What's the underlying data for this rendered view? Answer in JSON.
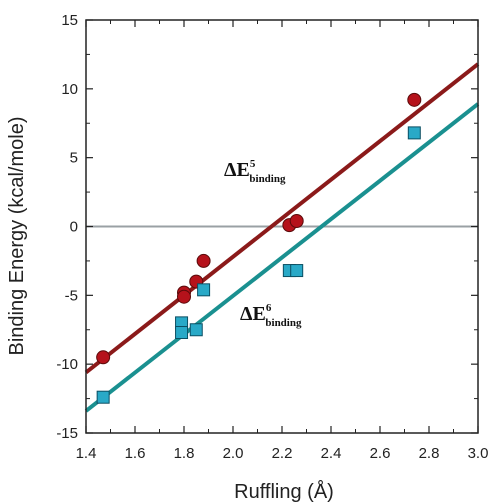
{
  "chart_data": {
    "type": "scatter",
    "title": "",
    "xlabel": "Ruffling (Å)",
    "ylabel": "Binding Energy  (kcal/mole)",
    "xlim": [
      1.4,
      3.0
    ],
    "ylim": [
      -15,
      15
    ],
    "x_ticks": [
      "1.4",
      "1.6",
      "1.8",
      "2.0",
      "2.2",
      "2.4",
      "2.6",
      "2.8",
      "3.0"
    ],
    "y_ticks": [
      "15",
      "10",
      "5",
      "0",
      "-5",
      "-10",
      "-15"
    ],
    "reference_line_y": 0,
    "grid": false,
    "series": [
      {
        "name": "ΔE5binding",
        "label_main": "ΔE",
        "label_sup": "5",
        "label_sub": "binding",
        "marker": "circle",
        "color": "#b5121b",
        "line_color": "#8b1a1a",
        "points": [
          {
            "x": 1.47,
            "y": -9.5
          },
          {
            "x": 1.8,
            "y": -4.8
          },
          {
            "x": 1.8,
            "y": -5.1
          },
          {
            "x": 1.85,
            "y": -4.0
          },
          {
            "x": 1.88,
            "y": -2.5
          },
          {
            "x": 2.23,
            "y": 0.1
          },
          {
            "x": 2.26,
            "y": 0.4
          },
          {
            "x": 2.74,
            "y": 9.2
          }
        ],
        "fit": {
          "x": [
            1.4,
            3.0
          ],
          "y": [
            -10.6,
            11.8
          ]
        }
      },
      {
        "name": "ΔE6binding",
        "label_main": "ΔE",
        "label_sup": "6",
        "label_sub": "binding",
        "marker": "square",
        "color": "#29a9c7",
        "line_color": "#1a9090",
        "points": [
          {
            "x": 1.47,
            "y": -12.4
          },
          {
            "x": 1.79,
            "y": -7.0
          },
          {
            "x": 1.79,
            "y": -7.7
          },
          {
            "x": 1.85,
            "y": -7.5
          },
          {
            "x": 1.88,
            "y": -4.6
          },
          {
            "x": 2.23,
            "y": -3.2
          },
          {
            "x": 2.26,
            "y": -3.2
          },
          {
            "x": 2.74,
            "y": 6.8
          }
        ],
        "fit": {
          "x": [
            1.4,
            3.0
          ],
          "y": [
            -13.4,
            8.9
          ]
        }
      }
    ]
  }
}
